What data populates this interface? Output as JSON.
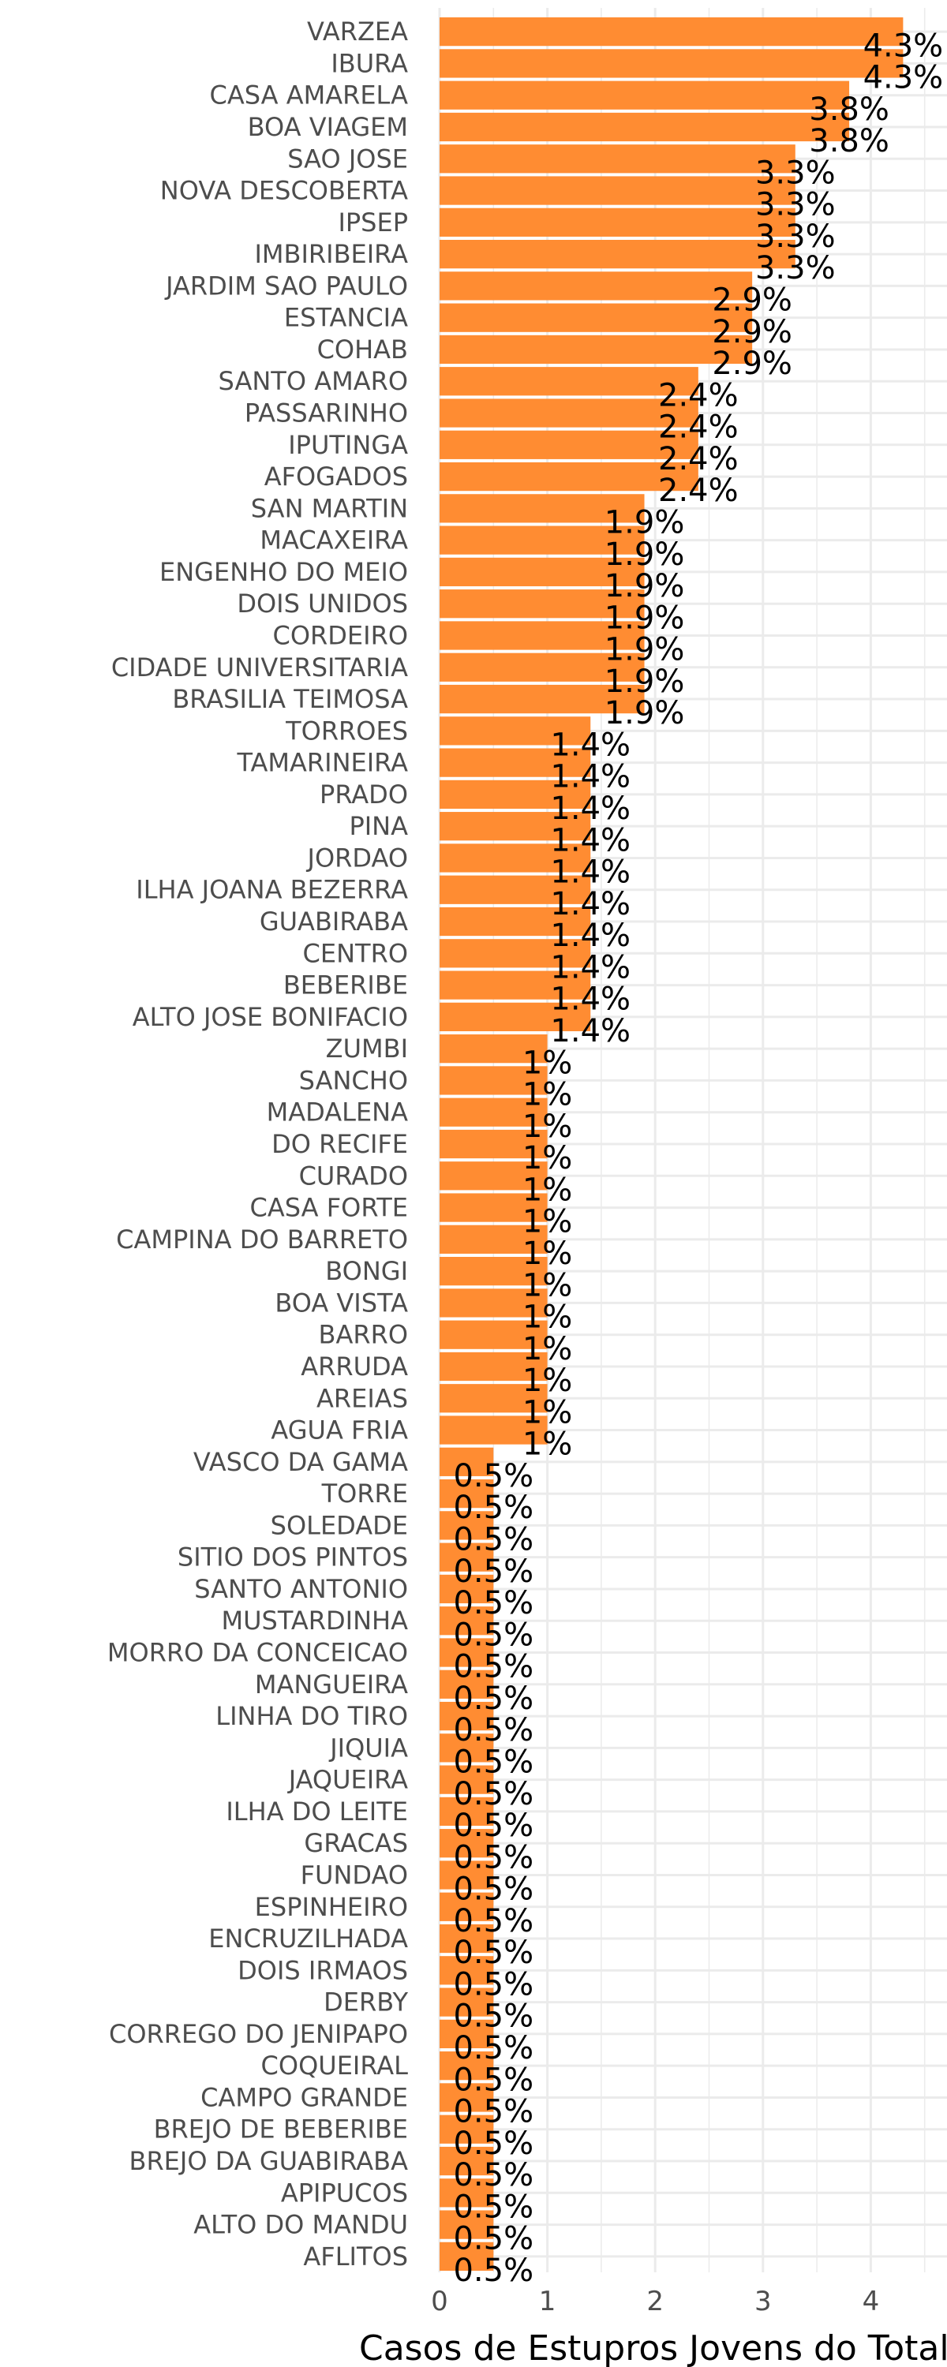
{
  "chart_data": {
    "type": "bar",
    "orientation": "horizontal",
    "xlabel": "Casos de Estupros Jovens do Total",
    "ylabel": "",
    "title": "",
    "xlim": [
      0,
      4.5
    ],
    "xticks": [
      0,
      1,
      2,
      3,
      4
    ],
    "grid": true,
    "legend": "none",
    "bar_color": "#FF8C32",
    "grid_color": "#EBEBEB",
    "categories": [
      "VARZEA",
      "IBURA",
      "CASA AMARELA",
      "BOA VIAGEM",
      "SAO JOSE",
      "NOVA DESCOBERTA",
      "IPSEP",
      "IMBIRIBEIRA",
      "JARDIM SAO PAULO",
      "ESTANCIA",
      "COHAB",
      "SANTO AMARO",
      "PASSARINHO",
      "IPUTINGA",
      "AFOGADOS",
      "SAN MARTIN",
      "MACAXEIRA",
      "ENGENHO DO MEIO",
      "DOIS UNIDOS",
      "CORDEIRO",
      "CIDADE UNIVERSITARIA",
      "BRASILIA TEIMOSA",
      "TORROES",
      "TAMARINEIRA",
      "PRADO",
      "PINA",
      "JORDAO",
      "ILHA JOANA BEZERRA",
      "GUABIRABA",
      "CENTRO",
      "BEBERIBE",
      "ALTO JOSE BONIFACIO",
      "ZUMBI",
      "SANCHO",
      "MADALENA",
      "DO RECIFE",
      "CURADO",
      "CASA FORTE",
      "CAMPINA DO BARRETO",
      "BONGI",
      "BOA VISTA",
      "BARRO",
      "ARRUDA",
      "AREIAS",
      "AGUA FRIA",
      "VASCO DA GAMA",
      "TORRE",
      "SOLEDADE",
      "SITIO DOS PINTOS",
      "SANTO ANTONIO",
      "MUSTARDINHA",
      "MORRO  DA CONCEICAO",
      "MANGUEIRA",
      "LINHA DO TIRO",
      "JIQUIA",
      "JAQUEIRA",
      "ILHA DO LEITE",
      "GRACAS",
      "FUNDAO",
      "ESPINHEIRO",
      "ENCRUZILHADA",
      "DOIS IRMAOS",
      "DERBY",
      "CORREGO DO JENIPAPO",
      "COQUEIRAL",
      "CAMPO GRANDE",
      "BREJO DE BEBERIBE",
      "BREJO DA GUABIRABA",
      "APIPUCOS",
      "ALTO DO MANDU",
      "AFLITOS"
    ],
    "values": [
      4.3,
      4.3,
      3.8,
      3.8,
      3.3,
      3.3,
      3.3,
      3.3,
      2.9,
      2.9,
      2.9,
      2.4,
      2.4,
      2.4,
      2.4,
      1.9,
      1.9,
      1.9,
      1.9,
      1.9,
      1.9,
      1.9,
      1.4,
      1.4,
      1.4,
      1.4,
      1.4,
      1.4,
      1.4,
      1.4,
      1.4,
      1.4,
      1,
      1,
      1,
      1,
      1,
      1,
      1,
      1,
      1,
      1,
      1,
      1,
      1,
      0.5,
      0.5,
      0.5,
      0.5,
      0.5,
      0.5,
      0.5,
      0.5,
      0.5,
      0.5,
      0.5,
      0.5,
      0.5,
      0.5,
      0.5,
      0.5,
      0.5,
      0.5,
      0.5,
      0.5,
      0.5,
      0.5,
      0.5,
      0.5,
      0.5,
      0.5
    ],
    "data_labels": [
      "4.3%",
      "4.3%",
      "3.8%",
      "3.8%",
      "3.3%",
      "3.3%",
      "3.3%",
      "3.3%",
      "2.9%",
      "2.9%",
      "2.9%",
      "2.4%",
      "2.4%",
      "2.4%",
      "2.4%",
      "1.9%",
      "1.9%",
      "1.9%",
      "1.9%",
      "1.9%",
      "1.9%",
      "1.9%",
      "1.4%",
      "1.4%",
      "1.4%",
      "1.4%",
      "1.4%",
      "1.4%",
      "1.4%",
      "1.4%",
      "1.4%",
      "1.4%",
      "1%",
      "1%",
      "1%",
      "1%",
      "1%",
      "1%",
      "1%",
      "1%",
      "1%",
      "1%",
      "1%",
      "1%",
      "1%",
      "0.5%",
      "0.5%",
      "0.5%",
      "0.5%",
      "0.5%",
      "0.5%",
      "0.5%",
      "0.5%",
      "0.5%",
      "0.5%",
      "0.5%",
      "0.5%",
      "0.5%",
      "0.5%",
      "0.5%",
      "0.5%",
      "0.5%",
      "0.5%",
      "0.5%",
      "0.5%",
      "0.5%",
      "0.5%",
      "0.5%",
      "0.5%",
      "0.5%",
      "0.5%"
    ]
  }
}
